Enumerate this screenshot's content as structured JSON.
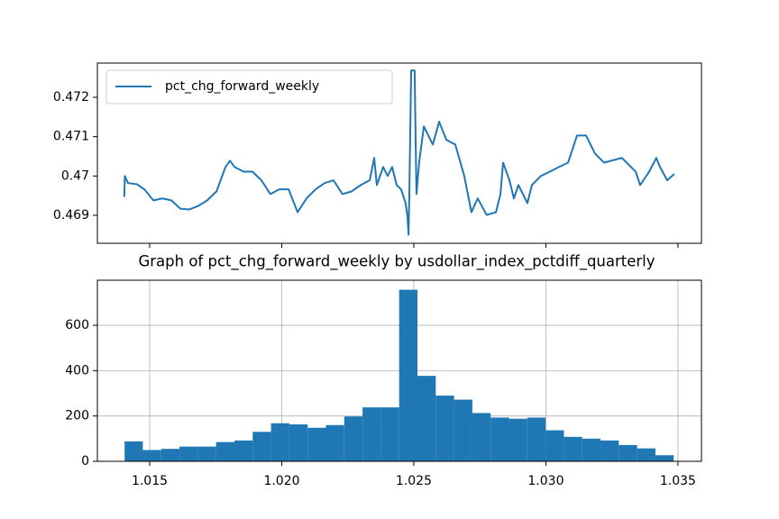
{
  "chart_data": [
    {
      "type": "line",
      "x": [
        1.01404,
        1.01406,
        1.01418,
        1.01452,
        1.0148,
        1.01514,
        1.01548,
        1.01582,
        1.01616,
        1.0165,
        1.01684,
        1.01718,
        1.01753,
        1.01787,
        1.01804,
        1.01821,
        1.01855,
        1.01889,
        1.01923,
        1.01957,
        1.01991,
        1.02026,
        1.0206,
        1.02094,
        1.02128,
        1.02162,
        1.02196,
        1.0223,
        1.02265,
        1.02299,
        1.02333,
        1.0235,
        1.0236,
        1.02384,
        1.02401,
        1.02418,
        1.02435,
        1.02452,
        1.02469,
        1.02476,
        1.0248,
        1.02483,
        1.0249,
        1.02503,
        1.0251,
        1.0252,
        1.02538,
        1.02572,
        1.02596,
        1.02623,
        1.02657,
        1.02691,
        1.02718,
        1.02742,
        1.02776,
        1.02811,
        1.02828,
        1.02838,
        1.02862,
        1.02879,
        1.02896,
        1.0293,
        1.02947,
        1.02981,
        1.03015,
        1.0305,
        1.03084,
        1.03118,
        1.03152,
        1.03186,
        1.0322,
        1.03288,
        1.0334,
        1.03357,
        1.03391,
        1.03418,
        1.03432,
        1.03459,
        1.03486
      ],
      "series": [
        {
          "name": "pct_chg_forward_weekly",
          "color": "#1f77b4",
          "values": [
            0.46947,
            0.47,
            0.46982,
            0.46979,
            0.46966,
            0.46938,
            0.46943,
            0.46938,
            0.46917,
            0.46915,
            0.46924,
            0.46938,
            0.46961,
            0.47023,
            0.47039,
            0.47023,
            0.47011,
            0.47011,
            0.46989,
            0.46954,
            0.46966,
            0.46966,
            0.46908,
            0.46943,
            0.46966,
            0.46982,
            0.46989,
            0.46954,
            0.46961,
            0.46977,
            0.46989,
            0.47046,
            0.46977,
            0.47023,
            0.47,
            0.47023,
            0.46977,
            0.46966,
            0.46931,
            0.46897,
            0.46851,
            0.46954,
            0.47268,
            0.47268,
            0.46954,
            0.47034,
            0.47126,
            0.4708,
            0.47138,
            0.47092,
            0.4708,
            0.47,
            0.46908,
            0.46943,
            0.46901,
            0.46908,
            0.46954,
            0.47034,
            0.46989,
            0.46943,
            0.46977,
            0.46931,
            0.46977,
            0.47,
            0.47011,
            0.47023,
            0.47034,
            0.47103,
            0.47103,
            0.47057,
            0.47034,
            0.47046,
            0.47011,
            0.46977,
            0.47011,
            0.47046,
            0.47023,
            0.46989,
            0.47005
          ]
        }
      ],
      "xlim": [
        1.01302,
        1.03589
      ],
      "xticks": [
        1.015,
        1.02,
        1.025,
        1.03,
        1.035
      ],
      "xtick_labels": false,
      "ylim": [
        0.46829,
        0.47287
      ],
      "yticks": [
        0.469,
        0.47,
        0.471,
        0.472
      ],
      "legend": "upper left",
      "grid": false
    },
    {
      "type": "histogram",
      "title": "Graph of pct_chg_forward_weekly by usdollar_index_pctdiff_quarterly",
      "bins": [
        1.01405,
        1.014743,
        1.015436,
        1.016129,
        1.016822,
        1.017515,
        1.018208,
        1.018901,
        1.019594,
        1.020287,
        1.02098,
        1.021673,
        1.022366,
        1.023059,
        1.023752,
        1.024445,
        1.025138,
        1.025831,
        1.026524,
        1.027217,
        1.02791,
        1.028603,
        1.029296,
        1.029989,
        1.030682,
        1.031375,
        1.032068,
        1.032761,
        1.033454,
        1.034147,
        1.03484
      ],
      "values": [
        88,
        50,
        55,
        65,
        65,
        85,
        92,
        130,
        168,
        163,
        148,
        160,
        198,
        238,
        238,
        757,
        377,
        290,
        272,
        213,
        193,
        188,
        193,
        137,
        108,
        100,
        92,
        72,
        57,
        27
      ],
      "color": "#1f77b4",
      "xlim": [
        1.01302,
        1.03589
      ],
      "xticks": [
        {
          "value": 1.015,
          "label": "1.015"
        },
        {
          "value": 1.02,
          "label": "1.020"
        },
        {
          "value": 1.025,
          "label": "1.025"
        },
        {
          "value": 1.03,
          "label": "1.030"
        },
        {
          "value": 1.035,
          "label": "1.035"
        }
      ],
      "ylim": [
        0,
        799
      ],
      "yticks": [
        0,
        200,
        400,
        600
      ],
      "grid": true
    }
  ]
}
